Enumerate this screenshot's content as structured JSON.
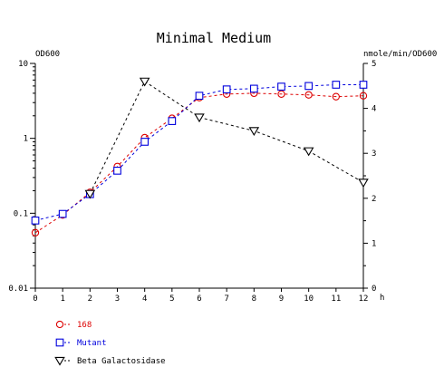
{
  "chart_data": {
    "type": "line",
    "title": "Minimal Medium",
    "xlabel": "h",
    "ylabel_left": "OD600",
    "ylabel_right": "nmole/min/OD600",
    "x_ticks": [
      "0",
      "1",
      "2",
      "3",
      "4",
      "5",
      "6",
      "7",
      "8",
      "9",
      "10",
      "11",
      "12"
    ],
    "y_left_ticks": [
      "10",
      "1",
      "0.1",
      "0.01"
    ],
    "y_right_ticks": [
      "0",
      "1",
      "2",
      "3",
      "4",
      "5"
    ],
    "y_left_scale": "log",
    "y_left_range": [
      0.01,
      10
    ],
    "y_right_range": [
      0,
      5
    ],
    "x_range": [
      0,
      12
    ],
    "grid": false,
    "legend_position": "bottom-left",
    "series": [
      {
        "name": "168",
        "axis": "left",
        "color": "#dd0000",
        "marker": "circle",
        "x": [
          0,
          1,
          2,
          3,
          4,
          5,
          6,
          7,
          8,
          9,
          10,
          11,
          12
        ],
        "values": [
          0.055,
          0.095,
          0.19,
          0.42,
          1.02,
          1.85,
          3.5,
          3.9,
          4.0,
          3.9,
          3.8,
          3.6,
          3.7
        ]
      },
      {
        "name": "Mutant",
        "axis": "left",
        "color": "#0000dd",
        "marker": "square",
        "x": [
          0,
          1,
          2,
          3,
          4,
          5,
          6,
          7,
          8,
          9,
          10,
          11,
          12
        ],
        "values": [
          0.08,
          0.098,
          0.18,
          0.37,
          0.9,
          1.7,
          3.7,
          4.5,
          4.6,
          4.9,
          5.0,
          5.2,
          5.2
        ]
      },
      {
        "name": "Beta Galactosidase",
        "axis": "right",
        "color": "#000000",
        "marker": "triangle-down",
        "x": [
          2,
          4,
          6,
          8,
          10,
          12
        ],
        "values": [
          2.1,
          4.6,
          3.8,
          3.5,
          3.05,
          2.35
        ]
      }
    ]
  }
}
